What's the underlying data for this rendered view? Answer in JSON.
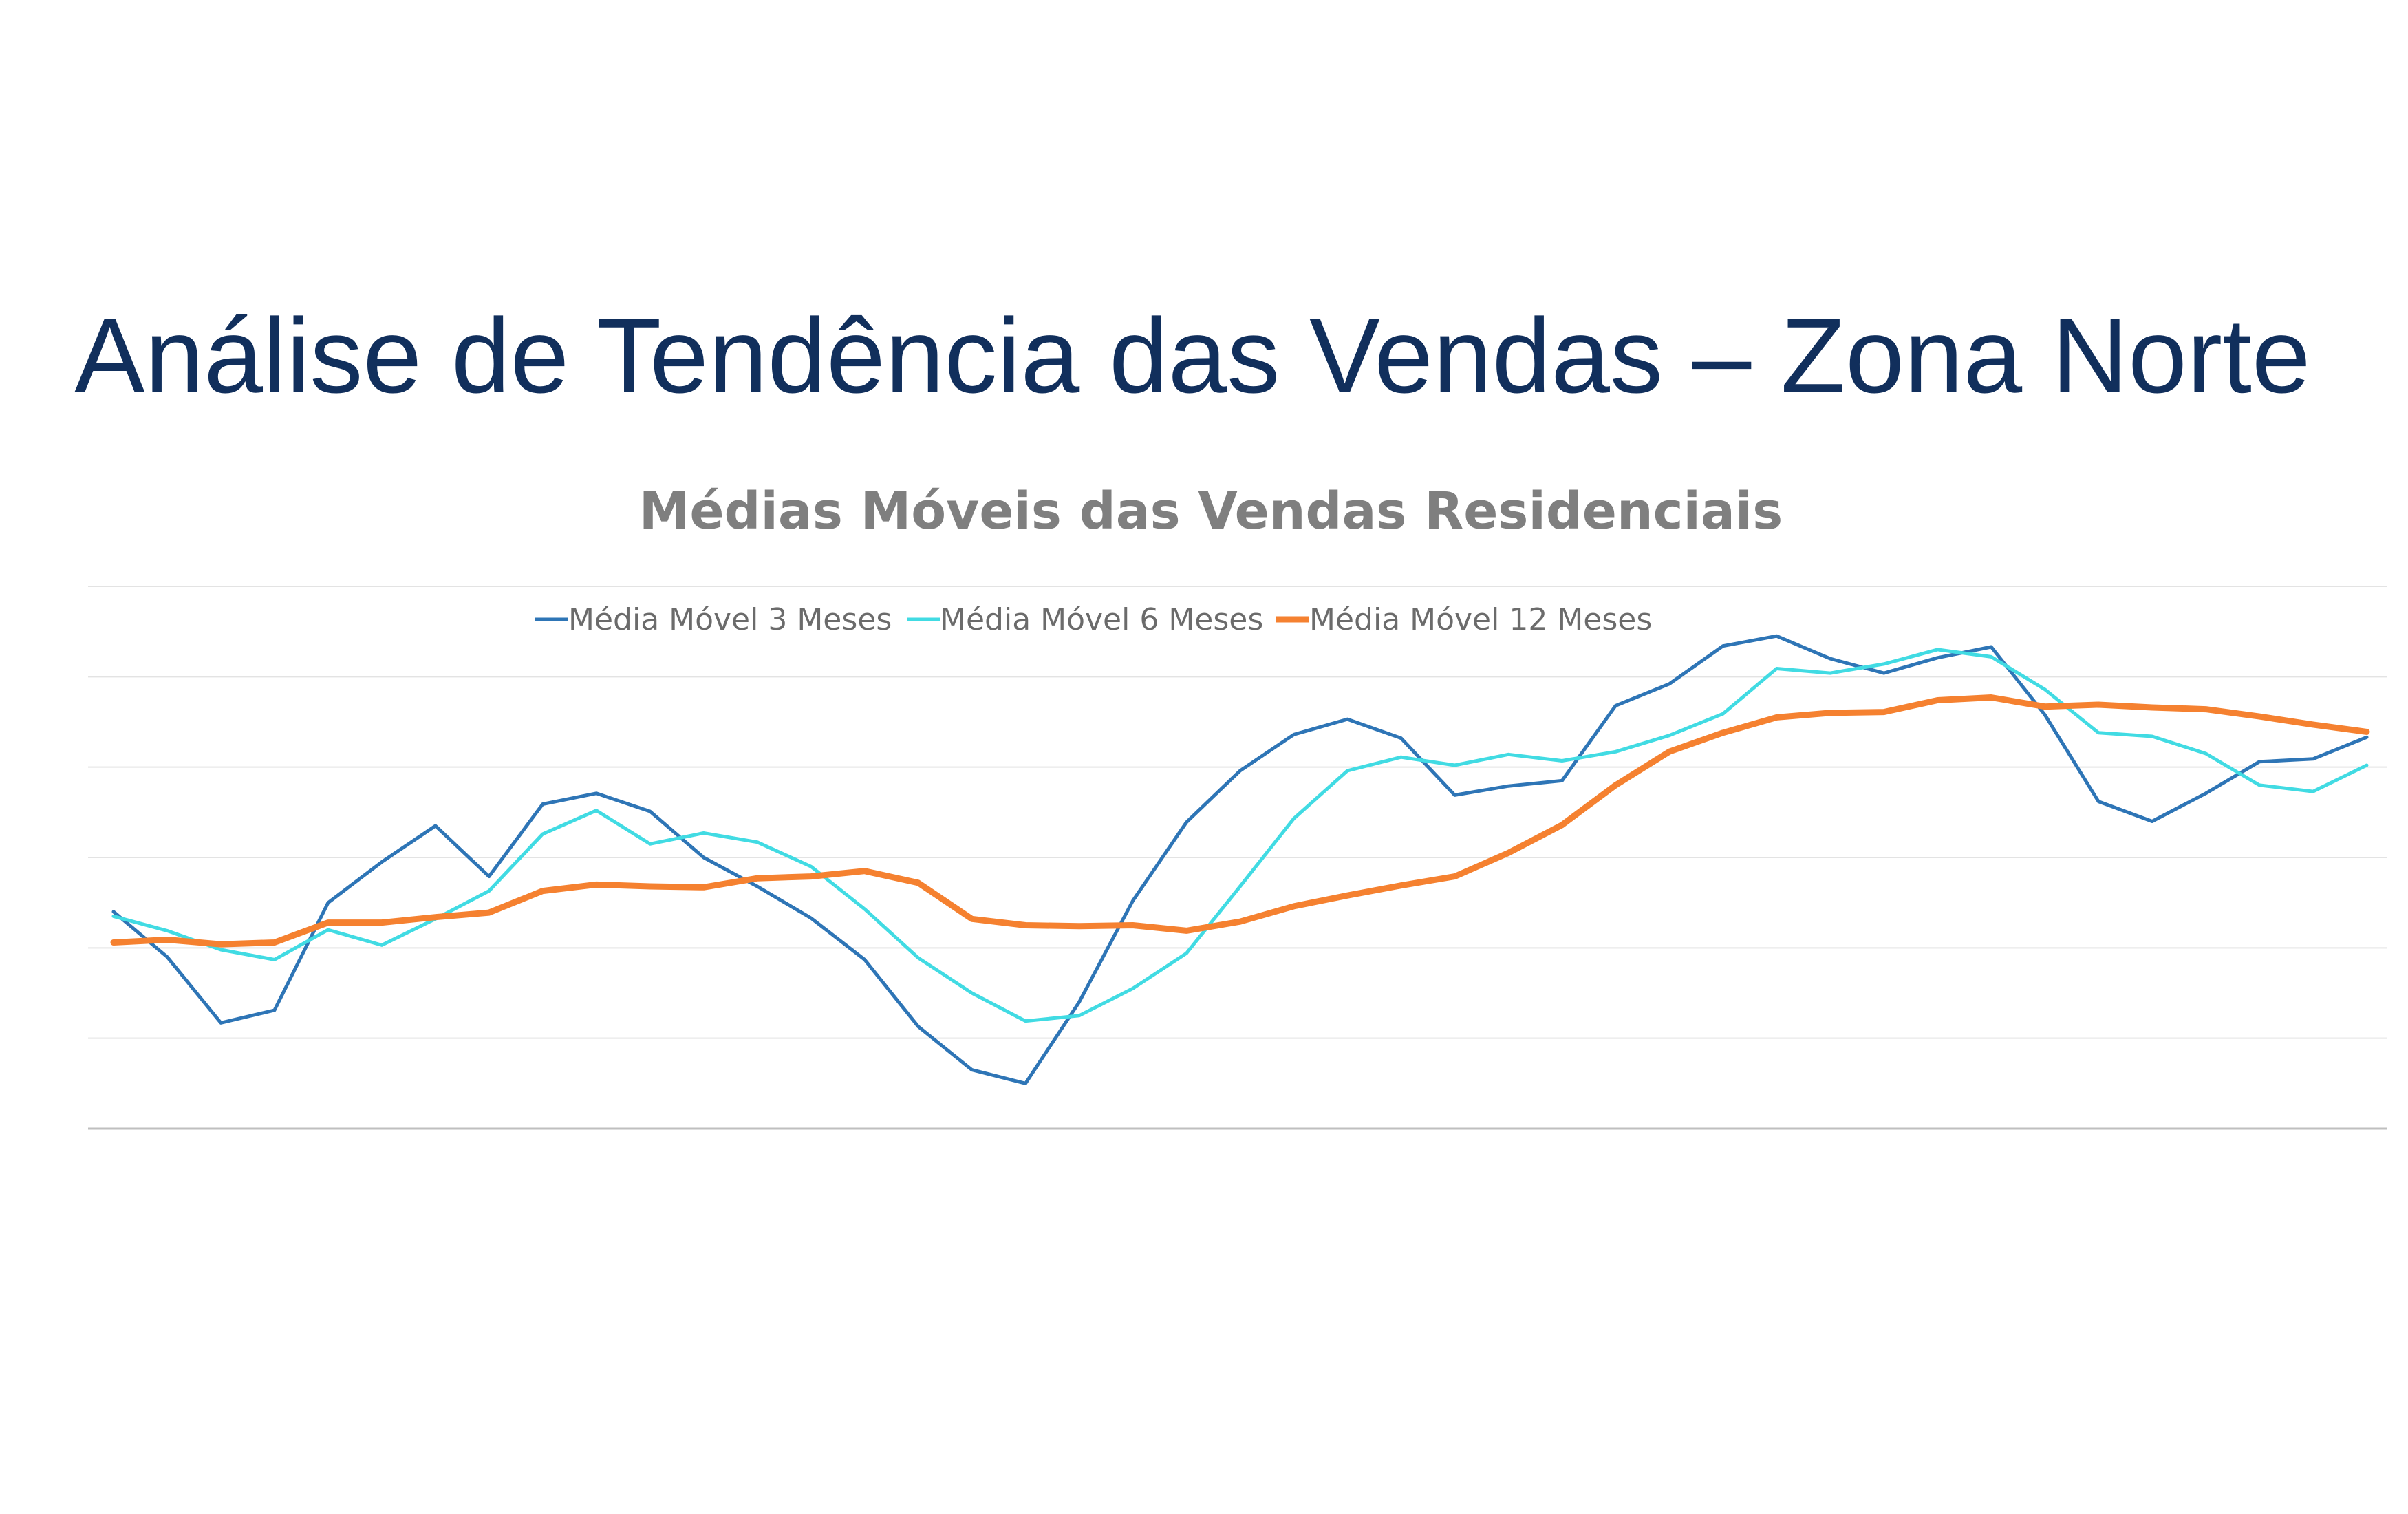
{
  "slide": {
    "title": "Análise de Tendência das Vendas – Zona Norte"
  },
  "chart_data": {
    "type": "line",
    "title": "Médias Móveis das Vendas Residenciais",
    "xlabel": "",
    "ylabel": "",
    "ylim": [
      0,
      6
    ],
    "grid": true,
    "legend_position": "top",
    "series": [
      {
        "name": "Média Móvel 3 Meses",
        "color": "#2e75b6",
        "values": [
          2.4,
          1.9,
          1.17,
          1.31,
          2.5,
          2.95,
          3.35,
          2.79,
          3.59,
          3.71,
          3.51,
          3.0,
          2.68,
          2.33,
          1.87,
          1.13,
          0.65,
          0.5,
          1.4,
          2.52,
          3.39,
          3.96,
          4.36,
          4.53,
          4.32,
          3.69,
          3.79,
          3.85,
          4.68,
          4.92,
          5.34,
          5.45,
          5.2,
          5.04,
          5.21,
          5.33,
          4.58,
          3.62,
          3.4,
          3.71,
          4.06,
          4.09,
          4.33
        ]
      },
      {
        "name": "Média Móvel 6 Meses",
        "color": "#41dbe3",
        "values": [
          2.35,
          2.19,
          1.98,
          1.87,
          2.2,
          2.03,
          2.32,
          2.63,
          3.26,
          3.52,
          3.15,
          3.27,
          3.17,
          2.9,
          2.43,
          1.89,
          1.5,
          1.19,
          1.25,
          1.55,
          1.94,
          2.68,
          3.43,
          3.96,
          4.11,
          4.02,
          4.14,
          4.07,
          4.17,
          4.35,
          4.59,
          5.09,
          5.04,
          5.14,
          5.3,
          5.22,
          4.86,
          4.38,
          4.34,
          4.15,
          3.8,
          3.73,
          4.02
        ]
      },
      {
        "name": "Média Móvel 12 Meses",
        "color": "#f58130",
        "values": [
          2.06,
          2.09,
          2.04,
          2.06,
          2.28,
          2.28,
          2.34,
          2.39,
          2.63,
          2.7,
          2.68,
          2.67,
          2.77,
          2.79,
          2.85,
          2.72,
          2.32,
          2.25,
          2.24,
          2.25,
          2.19,
          2.29,
          2.46,
          2.58,
          2.69,
          2.79,
          3.05,
          3.36,
          3.8,
          4.17,
          4.38,
          4.55,
          4.6,
          4.61,
          4.74,
          4.77,
          4.67,
          4.69,
          4.66,
          4.64,
          4.56,
          4.47,
          4.39
        ]
      }
    ]
  }
}
